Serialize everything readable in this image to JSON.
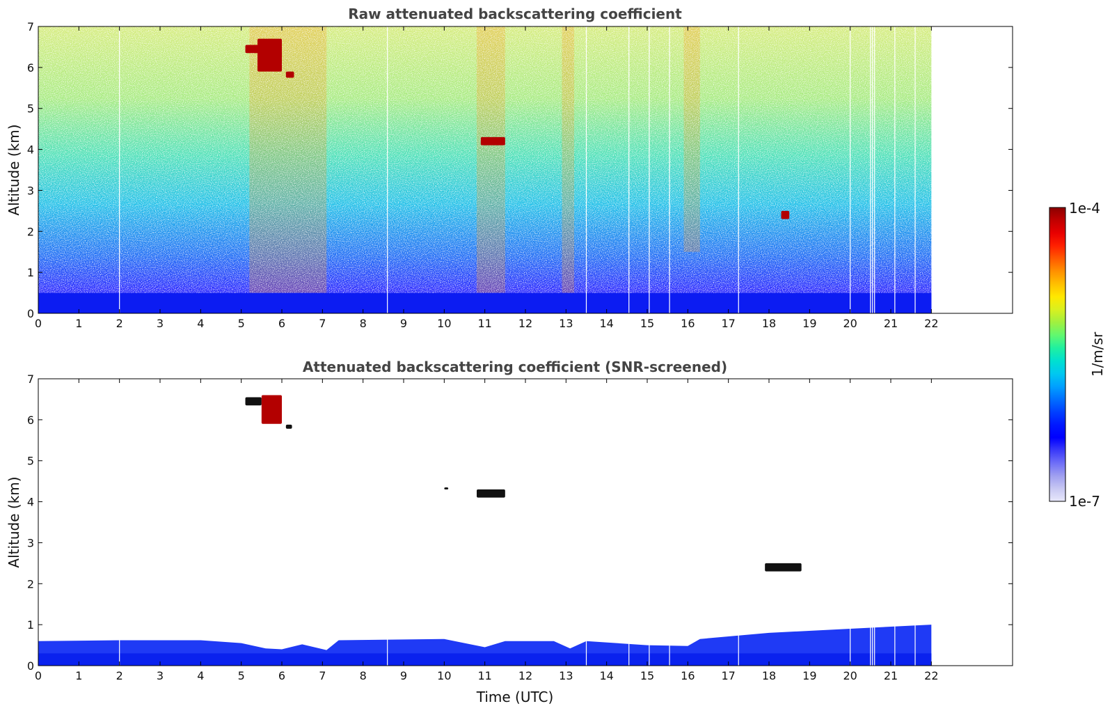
{
  "chart_data": [
    {
      "type": "heatmap",
      "title": "Raw attenuated backscattering coefficient",
      "xlabel": "",
      "ylabel": "Altitude (km)",
      "xlim": [
        0,
        24
      ],
      "ylim": [
        0,
        7
      ],
      "x_ticks": [
        "0",
        "1",
        "2",
        "3",
        "4",
        "5",
        "6",
        "7",
        "8",
        "9",
        "10",
        "11",
        "12",
        "13",
        "14",
        "15",
        "16",
        "17",
        "18",
        "19",
        "20",
        "21",
        "22"
      ],
      "y_ticks": [
        "0",
        "1",
        "2",
        "3",
        "4",
        "5",
        "6",
        "7"
      ],
      "data_time_range": [
        0,
        22
      ],
      "gap_times": [
        2.0,
        8.6,
        13.5,
        14.55,
        15.05,
        15.55,
        17.25,
        20.0,
        20.5,
        20.55,
        20.6,
        21.1,
        21.6
      ],
      "boundary_layer_top_km": 0.5,
      "clouds": [
        {
          "t0": 5.1,
          "t1": 5.5,
          "z0": 6.35,
          "z1": 6.55,
          "level": "high"
        },
        {
          "t0": 5.4,
          "t1": 6.0,
          "z0": 5.9,
          "z1": 6.7,
          "level": "high"
        },
        {
          "t0": 6.1,
          "t1": 6.3,
          "z0": 5.75,
          "z1": 5.9,
          "level": "high"
        },
        {
          "t0": 10.9,
          "t1": 11.5,
          "z0": 4.1,
          "z1": 4.3,
          "level": "high"
        },
        {
          "t0": 18.3,
          "t1": 18.5,
          "z0": 2.3,
          "z1": 2.5,
          "level": "high"
        }
      ],
      "aerosol_plumes": [
        {
          "t0": 5.2,
          "t1": 7.1,
          "z0": 0.5,
          "z1": 7.0
        },
        {
          "t0": 10.8,
          "t1": 11.5,
          "z0": 0.5,
          "z1": 7.0
        },
        {
          "t0": 12.9,
          "t1": 13.2,
          "z0": 0.5,
          "z1": 7.0
        },
        {
          "t0": 15.9,
          "t1": 16.3,
          "z0": 1.5,
          "z1": 7.0
        }
      ]
    },
    {
      "type": "heatmap",
      "title": "Attenuated backscattering coefficient (SNR-screened)",
      "xlabel": "Time (UTC)",
      "ylabel": "Altitude (km)",
      "xlim": [
        0,
        24
      ],
      "ylim": [
        0,
        7
      ],
      "x_ticks": [
        "0",
        "1",
        "2",
        "3",
        "4",
        "5",
        "6",
        "7",
        "8",
        "9",
        "10",
        "11",
        "12",
        "13",
        "14",
        "15",
        "16",
        "17",
        "18",
        "19",
        "20",
        "21",
        "22"
      ],
      "y_ticks": [
        "0",
        "1",
        "2",
        "3",
        "4",
        "5",
        "6",
        "7"
      ],
      "data_time_range": [
        0,
        22
      ],
      "gap_times": [
        2.0,
        8.6,
        13.5,
        14.55,
        15.05,
        15.55,
        17.25,
        20.0,
        20.5,
        20.55,
        20.6,
        21.1,
        21.6
      ],
      "boundary_layer_profile": [
        {
          "t": 0,
          "z": 0.6
        },
        {
          "t": 2,
          "z": 0.62
        },
        {
          "t": 4,
          "z": 0.62
        },
        {
          "t": 5,
          "z": 0.55
        },
        {
          "t": 5.6,
          "z": 0.42
        },
        {
          "t": 6,
          "z": 0.4
        },
        {
          "t": 6.5,
          "z": 0.52
        },
        {
          "t": 7.1,
          "z": 0.38
        },
        {
          "t": 7.4,
          "z": 0.62
        },
        {
          "t": 10,
          "z": 0.65
        },
        {
          "t": 11,
          "z": 0.45
        },
        {
          "t": 11.5,
          "z": 0.6
        },
        {
          "t": 12.7,
          "z": 0.6
        },
        {
          "t": 13.1,
          "z": 0.42
        },
        {
          "t": 13.5,
          "z": 0.6
        },
        {
          "t": 15,
          "z": 0.5
        },
        {
          "t": 16,
          "z": 0.48
        },
        {
          "t": 16.3,
          "z": 0.65
        },
        {
          "t": 18,
          "z": 0.8
        },
        {
          "t": 20,
          "z": 0.9
        },
        {
          "t": 22,
          "z": 1.0
        }
      ],
      "clouds": [
        {
          "t0": 5.1,
          "t1": 5.5,
          "z0": 6.35,
          "z1": 6.55,
          "level": "saturated"
        },
        {
          "t0": 5.5,
          "t1": 6.0,
          "z0": 5.9,
          "z1": 6.6,
          "level": "high"
        },
        {
          "t0": 6.1,
          "t1": 6.25,
          "z0": 5.78,
          "z1": 5.88,
          "level": "saturated"
        },
        {
          "t0": 10.8,
          "t1": 11.5,
          "z0": 4.1,
          "z1": 4.3,
          "level": "saturated"
        },
        {
          "t0": 10.0,
          "t1": 10.1,
          "z0": 4.3,
          "z1": 4.35,
          "level": "saturated"
        },
        {
          "t0": 17.9,
          "t1": 18.8,
          "z0": 2.3,
          "z1": 2.5,
          "level": "saturated"
        }
      ]
    }
  ],
  "colorbar": {
    "max_label": "1e-4",
    "min_label": "1e-7",
    "unit_label": "1/m/sr",
    "colors": [
      "#e8e8fb",
      "#c8c8f3",
      "#9f9ff0",
      "#6f6ff7",
      "#3a3af9",
      "#0000ff",
      "#0018ff",
      "#0040ff",
      "#0070ff",
      "#00a0ff",
      "#00c8f0",
      "#00e0d0",
      "#20f0a0",
      "#60f870",
      "#a0f040",
      "#d8f020",
      "#ffe800",
      "#ffc000",
      "#ff9000",
      "#ff5a00",
      "#ff2000",
      "#e80000",
      "#c00000",
      "#8b0000"
    ]
  }
}
